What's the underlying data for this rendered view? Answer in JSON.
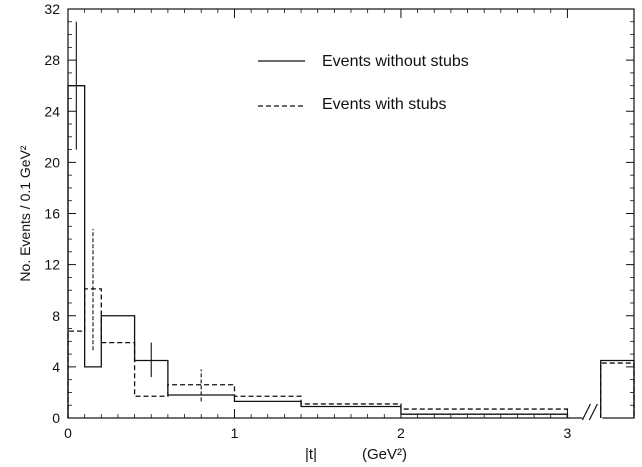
{
  "chart_data": {
    "type": "histogram",
    "xlabel": "|t|",
    "xlabel_unit": "(GeV²)",
    "ylabel": "No. Events / 0.1 GeV²",
    "xlim": [
      0,
      3.4
    ],
    "ylim": [
      0,
      32
    ],
    "x_ticks": [
      "0",
      "1",
      "2",
      "3"
    ],
    "y_ticks": [
      "0",
      "4",
      "8",
      "12",
      "16",
      "20",
      "24",
      "28",
      "32"
    ],
    "axis_break_at": 3.15,
    "legend_position": "top-right",
    "series": [
      {
        "name": "Events without stubs",
        "style": "solid",
        "bins": [
          {
            "x0": 0.0,
            "x1": 0.1,
            "y": 26.0
          },
          {
            "x0": 0.1,
            "x1": 0.2,
            "y": 4.0
          },
          {
            "x0": 0.2,
            "x1": 0.4,
            "y": 8.0
          },
          {
            "x0": 0.4,
            "x1": 0.6,
            "y": 4.5
          },
          {
            "x0": 0.6,
            "x1": 1.0,
            "y": 1.8
          },
          {
            "x0": 1.0,
            "x1": 1.4,
            "y": 1.3
          },
          {
            "x0": 1.4,
            "x1": 2.0,
            "y": 0.9
          },
          {
            "x0": 2.0,
            "x1": 3.0,
            "y": 0.3
          },
          {
            "x0": 3.2,
            "x1": 3.4,
            "y": 4.5
          }
        ],
        "error_bars": [
          {
            "x": 0.05,
            "low": 21.0,
            "high": 31.0
          },
          {
            "x": 0.5,
            "low": 3.2,
            "high": 5.9
          }
        ]
      },
      {
        "name": "Events with stubs",
        "style": "dashed",
        "bins": [
          {
            "x0": 0.0,
            "x1": 0.1,
            "y": 6.8
          },
          {
            "x0": 0.1,
            "x1": 0.2,
            "y": 10.1
          },
          {
            "x0": 0.2,
            "x1": 0.4,
            "y": 5.9
          },
          {
            "x0": 0.4,
            "x1": 0.6,
            "y": 1.7
          },
          {
            "x0": 0.6,
            "x1": 1.0,
            "y": 2.6
          },
          {
            "x0": 1.0,
            "x1": 1.4,
            "y": 1.7
          },
          {
            "x0": 1.4,
            "x1": 2.0,
            "y": 1.1
          },
          {
            "x0": 2.0,
            "x1": 3.0,
            "y": 0.7
          },
          {
            "x0": 3.2,
            "x1": 3.4,
            "y": 4.3
          }
        ],
        "error_bars": [
          {
            "x": 0.15,
            "low": 5.3,
            "high": 14.8
          },
          {
            "x": 0.8,
            "low": 1.3,
            "high": 3.8
          }
        ]
      }
    ]
  }
}
